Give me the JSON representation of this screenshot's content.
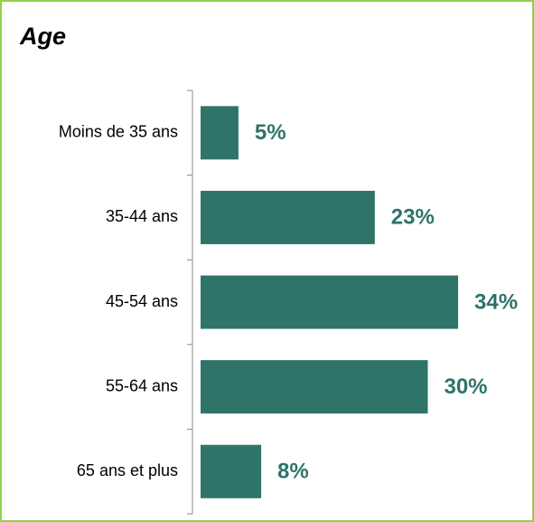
{
  "chart_data": {
    "type": "bar",
    "orientation": "horizontal",
    "title": "Age",
    "categories": [
      "Moins de 35 ans",
      "35-44 ans",
      "45-54 ans",
      "55-64 ans",
      "65 ans et plus"
    ],
    "values": [
      5,
      23,
      34,
      30,
      8
    ],
    "value_labels": [
      "5%",
      "23%",
      "34%",
      "30%",
      "8%"
    ],
    "color": "#2e7469"
  }
}
